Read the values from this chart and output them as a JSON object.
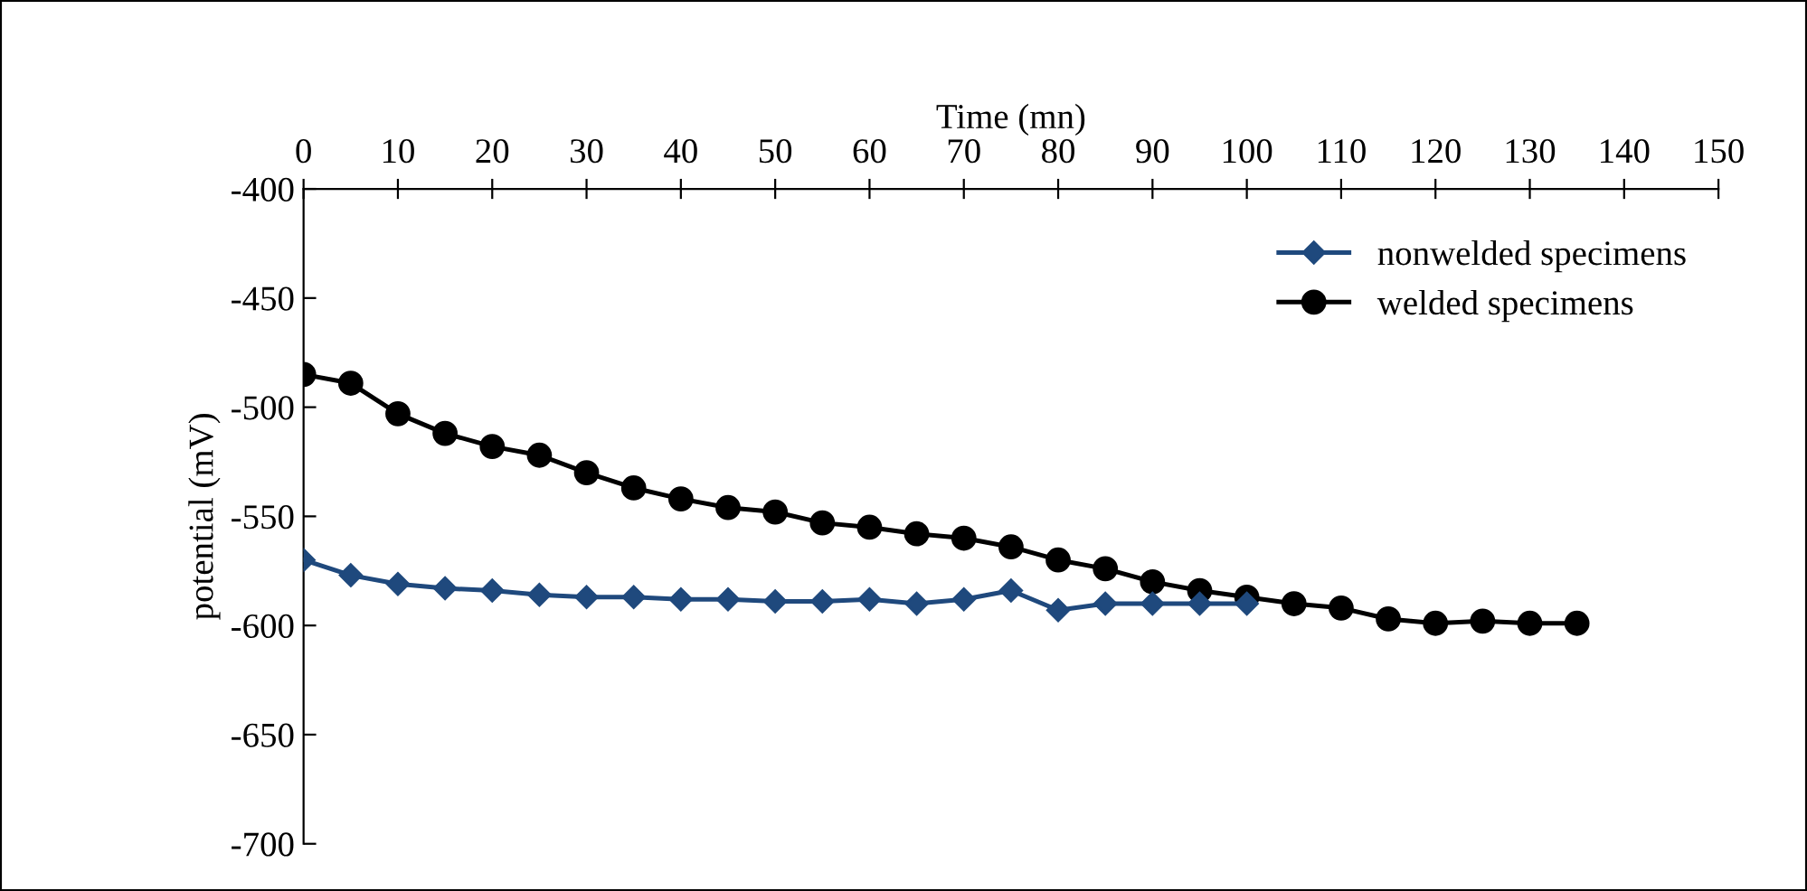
{
  "chart_data": {
    "type": "line",
    "xlabel": "Time (mn)",
    "ylabel": "potential (mV)",
    "xlim": [
      0,
      150
    ],
    "xticks": [
      0,
      10,
      20,
      30,
      40,
      50,
      60,
      70,
      80,
      90,
      100,
      110,
      120,
      130,
      140,
      150
    ],
    "ylim": [
      -700,
      -400
    ],
    "yticks": [
      -700,
      -650,
      -600,
      -550,
      -500,
      -450,
      -400
    ],
    "grid": false,
    "legend": "top right",
    "line_style": "solid",
    "series": [
      {
        "name": "nonwelded specimens",
        "color": "#1f497d",
        "marker": "diamond",
        "x": [
          0,
          5,
          10,
          15,
          20,
          25,
          30,
          35,
          40,
          45,
          50,
          55,
          60,
          65,
          70,
          75,
          80,
          85,
          90,
          95,
          100
        ],
        "values": [
          -570,
          -577,
          -581,
          -583,
          -584,
          -586,
          -587,
          -587,
          -588,
          -588,
          -589,
          -589,
          -588,
          -590,
          -588,
          -584,
          -593,
          -590,
          -590,
          -590,
          -590
        ]
      },
      {
        "name": "welded specimens",
        "color": "#000000",
        "marker": "circle",
        "x": [
          0,
          5,
          10,
          15,
          20,
          25,
          30,
          35,
          40,
          45,
          50,
          55,
          60,
          65,
          70,
          75,
          80,
          85,
          90,
          95,
          100,
          105,
          110,
          115,
          120,
          125,
          130,
          135
        ],
        "values": [
          -485,
          -489,
          -503,
          -512,
          -518,
          -522,
          -530,
          -537,
          -542,
          -546,
          -548,
          -553,
          -555,
          -558,
          -560,
          -564,
          -570,
          -574,
          -580,
          -584,
          -587,
          -590,
          -592,
          -597,
          -599,
          -598,
          -599,
          -599
        ]
      }
    ]
  }
}
